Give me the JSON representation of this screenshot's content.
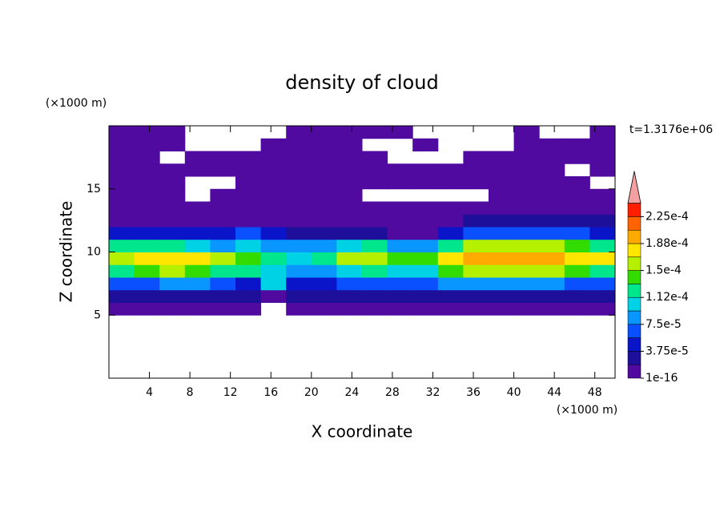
{
  "chart_data": {
    "type": "contour",
    "title": "density of cloud",
    "x_label": "X coordinate",
    "y_label": "Z coordinate",
    "x_unit": "(×1000 m)",
    "y_unit": "(×1000 m)",
    "annotation": "t=1.3176e+06",
    "xlim": [
      0,
      50
    ],
    "ylim": [
      0,
      20
    ],
    "xticks": [
      4,
      8,
      12,
      16,
      20,
      24,
      28,
      32,
      36,
      40,
      44,
      48
    ],
    "yticks": [
      5,
      10,
      15
    ],
    "x": [
      1.25,
      3.75,
      6.25,
      8.75,
      11.25,
      13.75,
      16.25,
      18.75,
      21.25,
      23.75,
      26.25,
      28.75,
      31.25,
      33.75,
      36.25,
      38.75,
      41.25,
      43.75,
      46.25,
      48.75
    ],
    "y": [
      0.5,
      1.5,
      2.5,
      3.5,
      4.5,
      5.5,
      6.5,
      7.5,
      8.5,
      9.5,
      10.5,
      11.5,
      12.5,
      13.5,
      14.5,
      15.5,
      16.5,
      17.5,
      18.5,
      19.5
    ],
    "z": [
      [
        null,
        null,
        null,
        null,
        null,
        null,
        null,
        null,
        null,
        null,
        null,
        null,
        null,
        null,
        null,
        null,
        null,
        null,
        null,
        null
      ],
      [
        null,
        null,
        null,
        null,
        null,
        null,
        null,
        null,
        null,
        null,
        null,
        null,
        null,
        null,
        null,
        null,
        null,
        null,
        null,
        null
      ],
      [
        null,
        null,
        null,
        null,
        null,
        null,
        null,
        null,
        null,
        null,
        null,
        null,
        null,
        null,
        null,
        null,
        null,
        null,
        null,
        null
      ],
      [
        null,
        null,
        null,
        null,
        null,
        null,
        null,
        null,
        null,
        null,
        null,
        null,
        null,
        null,
        null,
        null,
        null,
        null,
        null,
        null
      ],
      [
        null,
        null,
        null,
        null,
        null,
        null,
        null,
        null,
        null,
        null,
        null,
        null,
        null,
        null,
        null,
        null,
        null,
        null,
        null,
        null
      ],
      [
        4e-06,
        4e-06,
        4e-06,
        4e-06,
        4e-06,
        4e-06,
        null,
        4e-06,
        4e-06,
        4e-06,
        4e-06,
        4e-06,
        4e-06,
        4e-06,
        4e-06,
        4e-06,
        4e-06,
        4e-06,
        4e-06,
        4e-06
      ],
      [
        2.5e-05,
        2.5e-05,
        3e-05,
        3e-05,
        2.5e-05,
        2e-05,
        1.5e-05,
        2e-05,
        2.5e-05,
        3e-05,
        3e-05,
        2.5e-05,
        3e-05,
        3e-05,
        3e-05,
        3e-05,
        3e-05,
        3e-05,
        2.5e-05,
        2.5e-05
      ],
      [
        7e-05,
        7e-05,
        8e-05,
        8e-05,
        7e-05,
        5e-05,
        0.00011,
        4e-05,
        5e-05,
        6e-05,
        7e-05,
        6e-05,
        6e-05,
        8e-05,
        8e-05,
        8e-05,
        8e-05,
        8e-05,
        7e-05,
        7e-05
      ],
      [
        0.00013,
        0.00014,
        0.00015,
        0.00014,
        0.00012,
        0.00013,
        0.0001,
        8e-05,
        9e-05,
        0.00011,
        0.00012,
        0.0001,
        0.00011,
        0.00014,
        0.00015,
        0.00016,
        0.00015,
        0.00015,
        0.00014,
        0.00013
      ],
      [
        0.00016,
        0.00017,
        0.000175,
        0.00017,
        0.00015,
        0.00014,
        0.00012,
        0.00011,
        0.00012,
        0.00015,
        0.00016,
        0.00014,
        0.00014,
        0.00017,
        0.00019,
        0.0002,
        0.0002,
        0.00019,
        0.00018,
        0.00017
      ],
      [
        0.00012,
        0.00013,
        0.00013,
        0.00011,
        9e-05,
        0.0001,
        9e-05,
        8e-05,
        9e-05,
        0.00011,
        0.00012,
        9e-05,
        8e-05,
        0.00013,
        0.00015,
        0.00016,
        0.00016,
        0.00015,
        0.00014,
        0.00013
      ],
      [
        5e-05,
        5e-05,
        4e-05,
        4e-05,
        5e-05,
        6e-05,
        5e-05,
        3e-05,
        2e-05,
        2e-05,
        2e-05,
        1e-05,
        4e-06,
        5e-05,
        7e-05,
        7e-05,
        7e-05,
        6e-05,
        6e-05,
        5e-05
      ],
      [
        1.5e-05,
        1.5e-05,
        1e-05,
        1e-05,
        1e-05,
        1e-05,
        1e-05,
        8e-06,
        6e-06,
        5e-06,
        5e-06,
        4e-06,
        4e-06,
        1e-05,
        2e-05,
        2e-05,
        2e-05,
        2e-05,
        2e-05,
        2e-05
      ],
      [
        5e-06,
        5e-06,
        5e-06,
        5e-06,
        5e-06,
        5e-06,
        5e-06,
        5e-06,
        5e-06,
        5e-06,
        5e-06,
        5e-06,
        5e-06,
        5e-06,
        5e-06,
        5e-06,
        5e-06,
        5e-06,
        5e-06,
        5e-06
      ],
      [
        5e-06,
        5e-06,
        5e-06,
        null,
        5e-06,
        5e-06,
        5e-06,
        1e-05,
        5e-06,
        5e-06,
        null,
        null,
        null,
        null,
        null,
        5e-06,
        5e-06,
        5e-06,
        5e-06,
        5e-06
      ],
      [
        5e-06,
        5e-06,
        5e-06,
        null,
        null,
        5e-06,
        5e-06,
        1e-05,
        1e-05,
        5e-06,
        5e-06,
        5e-06,
        5e-06,
        5e-06,
        5e-06,
        5e-06,
        5e-06,
        5e-06,
        5e-06,
        null
      ],
      [
        5e-06,
        5e-06,
        5e-06,
        5e-06,
        5e-06,
        5e-06,
        5e-06,
        1e-05,
        1e-05,
        5e-06,
        5e-06,
        5e-06,
        5e-06,
        5e-06,
        5e-06,
        5e-06,
        5e-06,
        5e-06,
        null,
        5e-06
      ],
      [
        5e-06,
        5e-06,
        null,
        5e-06,
        5e-06,
        5e-06,
        5e-06,
        5e-06,
        5e-06,
        5e-06,
        5e-06,
        null,
        null,
        null,
        5e-06,
        5e-06,
        5e-06,
        5e-06,
        5e-06,
        5e-06
      ],
      [
        5e-06,
        5e-06,
        5e-06,
        null,
        null,
        null,
        5e-06,
        5e-06,
        5e-06,
        5e-06,
        null,
        null,
        5e-06,
        null,
        null,
        null,
        5e-06,
        5e-06,
        5e-06,
        5e-06
      ],
      [
        5e-06,
        5e-06,
        5e-06,
        null,
        null,
        null,
        null,
        5e-06,
        5e-06,
        5e-06,
        5e-06,
        5e-06,
        null,
        null,
        null,
        null,
        5e-06,
        null,
        null,
        5e-06
      ]
    ],
    "levels": [
      1e-16,
      1.875e-05,
      3.75e-05,
      5.625e-05,
      7.5e-05,
      9.375e-05,
      0.0001125,
      0.00013125,
      0.00015,
      0.00016875,
      0.0001875,
      0.00020625,
      0.000225,
      0.00024375
    ],
    "colors": [
      "#500aa0",
      "#1e0f9b",
      "#0a14c8",
      "#0a50ff",
      "#0a96ff",
      "#00d2e6",
      "#00e68c",
      "#32dc00",
      "#b4f000",
      "#ffe600",
      "#ffaa00",
      "#ff6400",
      "#ff1e00"
    ],
    "over_color": "#f4a0a0",
    "colorbar_ticks": [
      {
        "value": 1e-16,
        "label": "1e-16"
      },
      {
        "value": 3.75e-05,
        "label": "3.75e-5"
      },
      {
        "value": 7.5e-05,
        "label": "7.5e-5"
      },
      {
        "value": 0.0001125,
        "label": "1.12e-4"
      },
      {
        "value": 0.00015,
        "label": "1.5e-4"
      },
      {
        "value": 0.0001875,
        "label": "1.88e-4"
      },
      {
        "value": 0.000225,
        "label": "2.25e-4"
      }
    ]
  }
}
